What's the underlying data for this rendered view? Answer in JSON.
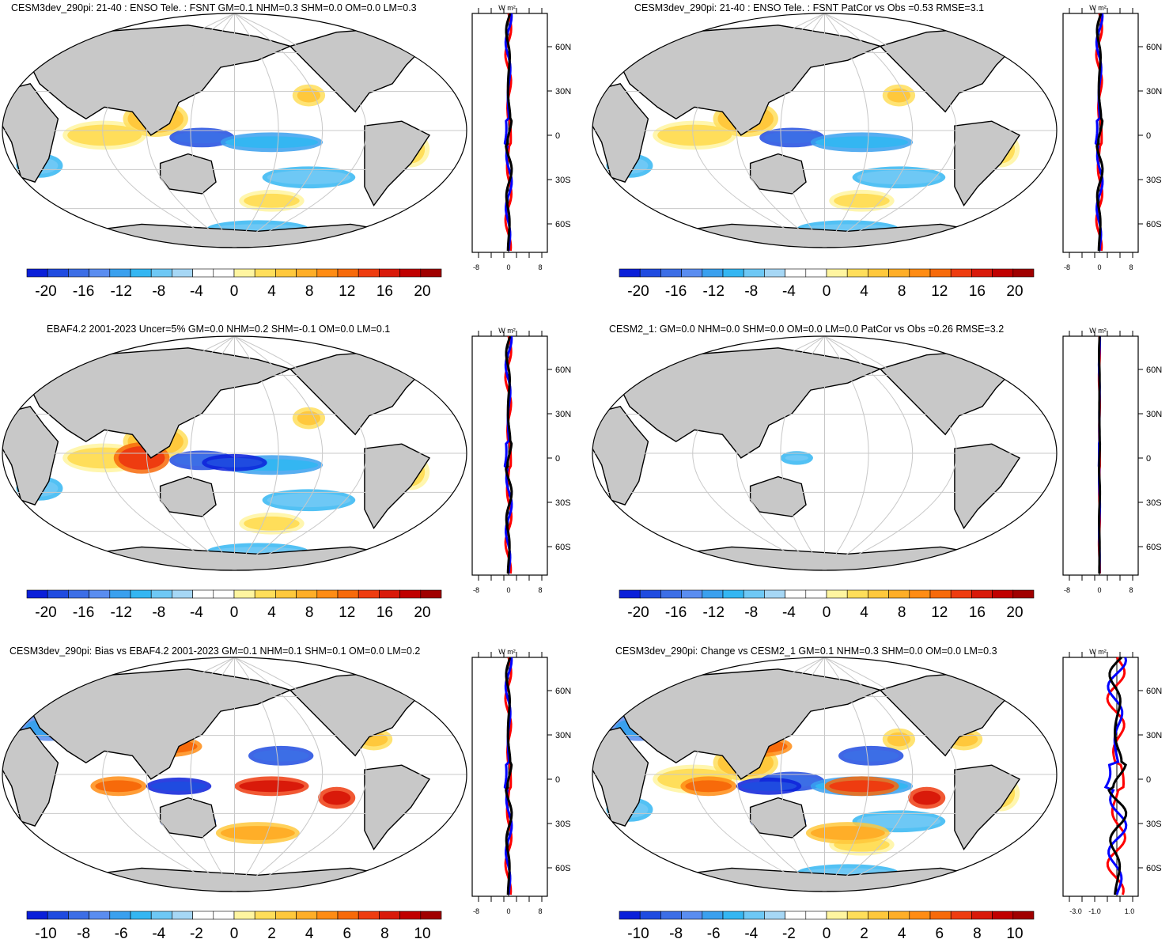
{
  "palette_colors": [
    "#0a1fd9",
    "#1f4be0",
    "#3c6ee6",
    "#5a8df0",
    "#3aa0ee",
    "#34b6f2",
    "#6ec8f5",
    "#a6d7f5",
    "#ffffff",
    "#ffffff",
    "#fff5a0",
    "#ffde5a",
    "#ffc83c",
    "#ffae28",
    "#ff8c14",
    "#f76a0a",
    "#ee3c10",
    "#d91a0a",
    "#c00000",
    "#a00000"
  ],
  "units_label": "W m²",
  "lat_ticks": [
    "60N",
    "30N",
    "0",
    "30S",
    "60S"
  ],
  "colorbar_main": [
    "-20",
    "-16",
    "-12",
    "-8",
    "-4",
    "0",
    "4",
    "8",
    "12",
    "16",
    "20"
  ],
  "colorbar_bias": [
    "-10",
    "-8",
    "-6",
    "-4",
    "-2",
    "0",
    "2",
    "4",
    "6",
    "8",
    "10"
  ],
  "profile_ticks_default": [
    "-8",
    "0",
    "8"
  ],
  "profile_ticks_last": [
    "-3.0",
    "-1.0",
    "1.0"
  ],
  "panels": [
    {
      "title": "CESM3dev_290pi: 21-40 : ENSO Tele. : FSNT GM=0.1 NHM=0.3 SHM=0.0 OM=0.0 LM=0.3"
    },
    {
      "title": "CESM3dev_290pi: 21-40 : ENSO Tele. : FSNT PatCor vs Obs =0.53 RMSE=3.1"
    },
    {
      "title": "EBAF4.2 2001-2023 Uncer=5% GM=0.0 NHM=0.2 SHM=-0.1 OM=0.0 LM=0.1"
    },
    {
      "title": "CESM2_1: GM=0.0 NHM=0.0 SHM=0.0 OM=0.0 LM=0.0 PatCor vs Obs =0.26 RMSE=3.2"
    },
    {
      "title": "CESM3dev_290pi: Bias vs EBAF4.2 2001-2023 GM=0.1 NHM=0.1 SHM=0.1 OM=0.0 LM=0.2"
    },
    {
      "title": "CESM3dev_290pi: Change vs CESM2_1 GM=0.1 NHM=0.3 SHM=0.0 OM=0.0 LM=0.3"
    }
  ]
}
